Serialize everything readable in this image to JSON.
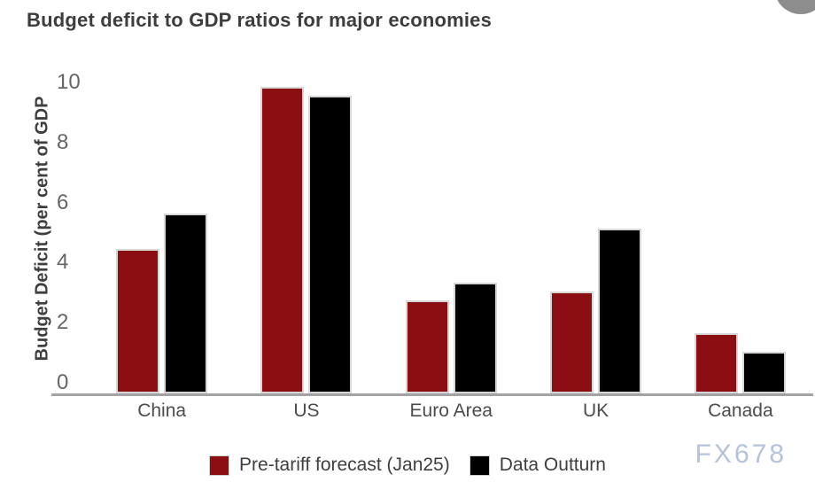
{
  "header": {
    "title": "Budget deficit to GDP ratios for major economies"
  },
  "chart_data": {
    "type": "bar",
    "title": "Budget deficit to GDP ratios for major economies",
    "ylabel": "Budget Deficit (per cent of GDP",
    "xlabel": "",
    "categories": [
      "China",
      "US",
      "Euro Area",
      "UK",
      "Canada"
    ],
    "series": [
      {
        "name": "Pre-tariff forecast (Jan25)",
        "color": "#8B0E12",
        "values": [
          4.8,
          10.2,
          3.1,
          3.4,
          2.0
        ]
      },
      {
        "name": "Data Outturn",
        "color": "#000000",
        "values": [
          6.0,
          9.9,
          3.7,
          5.5,
          1.4
        ]
      }
    ],
    "ylim": [
      0,
      10.3
    ],
    "yticks": [
      0,
      2,
      4,
      6,
      8,
      10
    ],
    "grid": false,
    "legend_position": "bottom",
    "bar_border_color": "#d7d7d7"
  },
  "watermark": "FX678",
  "decorations": {
    "corner_circle_color": "#8d8d8d"
  }
}
